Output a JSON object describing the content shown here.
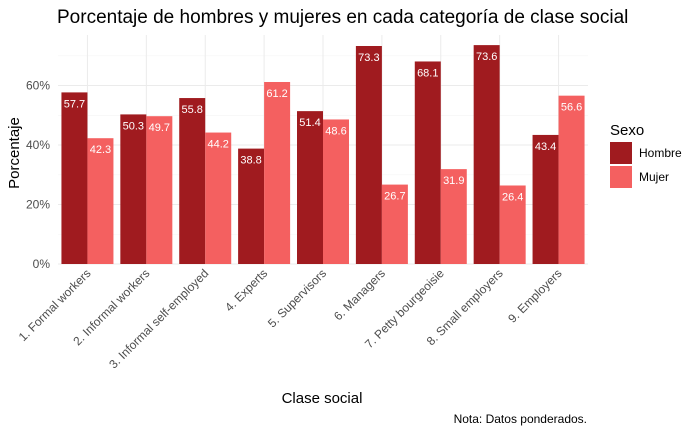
{
  "chart_data": {
    "type": "bar",
    "title": "Porcentaje de hombres y mujeres en cada categoría de clase social",
    "xlabel": "Clase social",
    "ylabel": "Porcentaje",
    "caption": "Nota: Datos ponderados.",
    "categories": [
      "1. Formal workers",
      "2. Informal workers",
      "3. Informal self-employed",
      "4. Experts",
      "5. Supervisors",
      "6. Managers",
      "7. Petty bourgeoisie",
      "8. Small employers",
      "9. Employers"
    ],
    "series": [
      {
        "name": "Hombre",
        "color": "#a01b1f",
        "values": [
          57.7,
          50.3,
          55.8,
          38.8,
          51.4,
          73.3,
          68.1,
          73.6,
          43.4
        ],
        "labels": [
          "57.7",
          "50.3",
          "55.8",
          "38.8",
          "51.4",
          "73.3",
          "68.1",
          "73.6",
          "43.4"
        ]
      },
      {
        "name": "Mujer",
        "color": "#f46060",
        "values": [
          42.3,
          49.7,
          44.2,
          61.2,
          48.6,
          26.7,
          31.9,
          26.4,
          56.6
        ],
        "labels": [
          "42.3",
          "49.7",
          "44.2",
          "61.2",
          "48.6",
          "26.7",
          "31.9",
          "26.4",
          "56.6"
        ]
      }
    ],
    "yticks": [
      0,
      20,
      40,
      60
    ],
    "ytick_labels": [
      "0%",
      "20%",
      "40%",
      "60%"
    ],
    "ylim": [
      0,
      77
    ],
    "legend": {
      "title": "Sexo",
      "position": "right"
    },
    "grid": true
  }
}
